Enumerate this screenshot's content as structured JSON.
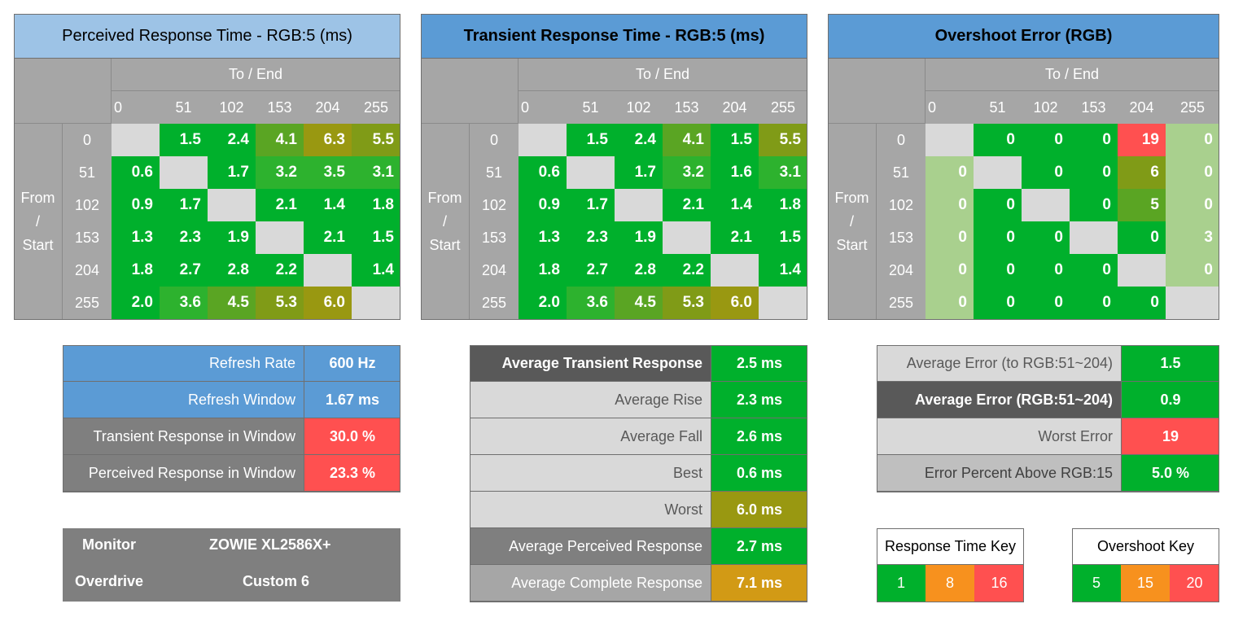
{
  "palette": {
    "green": "#00b02c",
    "green_mid": "#2db22e",
    "green_olive": "#5aa523",
    "olive": "#809b17",
    "olive_dark": "#999811",
    "light_green": "#a9d08e",
    "red": "#ff5050",
    "orange": "#f7911e",
    "dark_gold": "#d29a15",
    "header_gray": "#a6a6a6",
    "diag_gray": "#d9d9d9",
    "blue_light": "#9dc3e6",
    "blue": "#5b9bd5"
  },
  "chart_data": [
    {
      "type": "heatmap",
      "title": "Perceived Response Time - RGB:5 (ms)",
      "x_axis_label": "To / End",
      "y_axis_label_lines": [
        "From",
        "/",
        "Start"
      ],
      "columns": [
        "0",
        "51",
        "102",
        "153",
        "204",
        "255"
      ],
      "rows": [
        "0",
        "51",
        "102",
        "153",
        "204",
        "255"
      ],
      "values": [
        [
          null,
          "1.5",
          "2.4",
          "4.1",
          "6.3",
          "5.5"
        ],
        [
          "0.6",
          null,
          "1.7",
          "3.2",
          "3.5",
          "3.1"
        ],
        [
          "0.9",
          "1.7",
          null,
          "2.1",
          "1.4",
          "1.8"
        ],
        [
          "1.3",
          "2.3",
          "1.9",
          null,
          "2.1",
          "1.5"
        ],
        [
          "1.8",
          "2.7",
          "2.8",
          "2.2",
          null,
          "1.4"
        ],
        [
          "2.0",
          "3.6",
          "4.5",
          "5.3",
          "6.0",
          null
        ]
      ],
      "cell_colors": [
        [
          null,
          "green",
          "green",
          "green_olive",
          "olive_dark",
          "olive"
        ],
        [
          "green",
          null,
          "green",
          "green_mid",
          "green_mid",
          "green_mid"
        ],
        [
          "green",
          "green",
          null,
          "green",
          "green",
          "green"
        ],
        [
          "green",
          "green",
          "green",
          null,
          "green",
          "green"
        ],
        [
          "green",
          "green",
          "green",
          "green",
          null,
          "green"
        ],
        [
          "green",
          "green_mid",
          "green_olive",
          "olive",
          "olive_dark",
          null
        ]
      ]
    },
    {
      "type": "heatmap",
      "title": "Transient Response Time - RGB:5 (ms)",
      "x_axis_label": "To / End",
      "y_axis_label_lines": [
        "From",
        "/",
        "Start"
      ],
      "columns": [
        "0",
        "51",
        "102",
        "153",
        "204",
        "255"
      ],
      "rows": [
        "0",
        "51",
        "102",
        "153",
        "204",
        "255"
      ],
      "values": [
        [
          null,
          "1.5",
          "2.4",
          "4.1",
          "1.5",
          "5.5"
        ],
        [
          "0.6",
          null,
          "1.7",
          "3.2",
          "1.6",
          "3.1"
        ],
        [
          "0.9",
          "1.7",
          null,
          "2.1",
          "1.4",
          "1.8"
        ],
        [
          "1.3",
          "2.3",
          "1.9",
          null,
          "2.1",
          "1.5"
        ],
        [
          "1.8",
          "2.7",
          "2.8",
          "2.2",
          null,
          "1.4"
        ],
        [
          "2.0",
          "3.6",
          "4.5",
          "5.3",
          "6.0",
          null
        ]
      ],
      "cell_colors": [
        [
          null,
          "green",
          "green",
          "green_olive",
          "green",
          "olive"
        ],
        [
          "green",
          null,
          "green",
          "green_mid",
          "green",
          "green_mid"
        ],
        [
          "green",
          "green",
          null,
          "green",
          "green",
          "green"
        ],
        [
          "green",
          "green",
          "green",
          null,
          "green",
          "green"
        ],
        [
          "green",
          "green",
          "green",
          "green",
          null,
          "green"
        ],
        [
          "green",
          "green_mid",
          "green_olive",
          "olive",
          "olive_dark",
          null
        ]
      ]
    },
    {
      "type": "heatmap",
      "title": "Overshoot Error (RGB)",
      "x_axis_label": "To / End",
      "y_axis_label_lines": [
        "From",
        "/",
        "Start"
      ],
      "columns": [
        "0",
        "51",
        "102",
        "153",
        "204",
        "255"
      ],
      "rows": [
        "0",
        "51",
        "102",
        "153",
        "204",
        "255"
      ],
      "values": [
        [
          null,
          "0",
          "0",
          "0",
          "19",
          "0"
        ],
        [
          "0",
          null,
          "0",
          "0",
          "6",
          "0"
        ],
        [
          "0",
          "0",
          null,
          "0",
          "5",
          "0"
        ],
        [
          "0",
          "0",
          "0",
          null,
          "0",
          "3"
        ],
        [
          "0",
          "0",
          "0",
          "0",
          null,
          "0"
        ],
        [
          "0",
          "0",
          "0",
          "0",
          "0",
          null
        ]
      ],
      "cell_colors": [
        [
          null,
          "green",
          "green",
          "green",
          "red",
          "light_green"
        ],
        [
          "light_green",
          null,
          "green",
          "green",
          "olive",
          "light_green"
        ],
        [
          "light_green",
          "green",
          null,
          "green",
          "green_olive",
          "light_green"
        ],
        [
          "light_green",
          "green",
          "green",
          null,
          "green",
          "light_green"
        ],
        [
          "light_green",
          "green",
          "green",
          "green",
          null,
          "light_green"
        ],
        [
          "light_green",
          "green",
          "green",
          "green",
          "green",
          null
        ]
      ]
    }
  ],
  "window_stats": {
    "rows": [
      {
        "label": "Refresh Rate",
        "value": "600 Hz",
        "label_bg": "blue",
        "label_color": "#ffffff",
        "value_bg": "blue"
      },
      {
        "label": "Refresh Window",
        "value": "1.67 ms",
        "label_bg": "blue",
        "label_color": "#ffffff",
        "value_bg": "blue"
      },
      {
        "label": "Transient Response in Window",
        "value": "30.0 %",
        "label_bg": "#7f7f7f",
        "label_color": "#ffffff",
        "value_bg": "red"
      },
      {
        "label": "Perceived Response in Window",
        "value": "23.3 %",
        "label_bg": "#7f7f7f",
        "label_color": "#ffffff",
        "value_bg": "red"
      }
    ]
  },
  "monitor_info": {
    "monitor_label": "Monitor",
    "monitor_value": "ZOWIE XL2586X+",
    "overdrive_label": "Overdrive",
    "overdrive_value": "Custom 6"
  },
  "response_stats": {
    "rows": [
      {
        "label": "Average Transient Response",
        "value": "2.5 ms",
        "label_bg": "#595959",
        "label_color": "#ffffff",
        "bold": true,
        "value_bg": "green"
      },
      {
        "label": "Average Rise",
        "value": "2.3 ms",
        "label_bg": "#d9d9d9",
        "label_color": "#595959",
        "bold": false,
        "value_bg": "green"
      },
      {
        "label": "Average Fall",
        "value": "2.6 ms",
        "label_bg": "#d9d9d9",
        "label_color": "#595959",
        "bold": false,
        "value_bg": "green"
      },
      {
        "label": "Best",
        "value": "0.6 ms",
        "label_bg": "#d9d9d9",
        "label_color": "#595959",
        "bold": false,
        "value_bg": "green"
      },
      {
        "label": "Worst",
        "value": "6.0 ms",
        "label_bg": "#d9d9d9",
        "label_color": "#595959",
        "bold": false,
        "value_bg": "olive_dark"
      },
      {
        "label": "Average Perceived Response",
        "value": "2.7 ms",
        "label_bg": "#7f7f7f",
        "label_color": "#ffffff",
        "bold": false,
        "value_bg": "green"
      },
      {
        "label": "Average Complete Response",
        "value": "7.1 ms",
        "label_bg": "#a6a6a6",
        "label_color": "#ffffff",
        "bold": false,
        "value_bg": "dark_gold"
      }
    ]
  },
  "error_stats": {
    "rows": [
      {
        "label": "Average Error (to RGB:51~204)",
        "value": "1.5",
        "label_bg": "#d9d9d9",
        "label_color": "#595959",
        "bold": false,
        "value_bg": "green"
      },
      {
        "label": "Average Error (RGB:51~204)",
        "value": "0.9",
        "label_bg": "#595959",
        "label_color": "#ffffff",
        "bold": true,
        "value_bg": "green"
      },
      {
        "label": "Worst Error",
        "value": "19",
        "label_bg": "#d9d9d9",
        "label_color": "#595959",
        "bold": false,
        "value_bg": "red"
      },
      {
        "label": "Error Percent Above RGB:15",
        "value": "5.0 %",
        "label_bg": "#bfbfbf",
        "label_color": "#404040",
        "bold": false,
        "value_bg": "green"
      }
    ]
  },
  "response_key": {
    "title": "Response Time Key",
    "items": [
      {
        "value": "1",
        "bg": "green"
      },
      {
        "value": "8",
        "bg": "orange"
      },
      {
        "value": "16",
        "bg": "red"
      }
    ]
  },
  "overshoot_key": {
    "title": "Overshoot Key",
    "items": [
      {
        "value": "5",
        "bg": "green"
      },
      {
        "value": "15",
        "bg": "orange"
      },
      {
        "value": "20",
        "bg": "red"
      }
    ]
  }
}
